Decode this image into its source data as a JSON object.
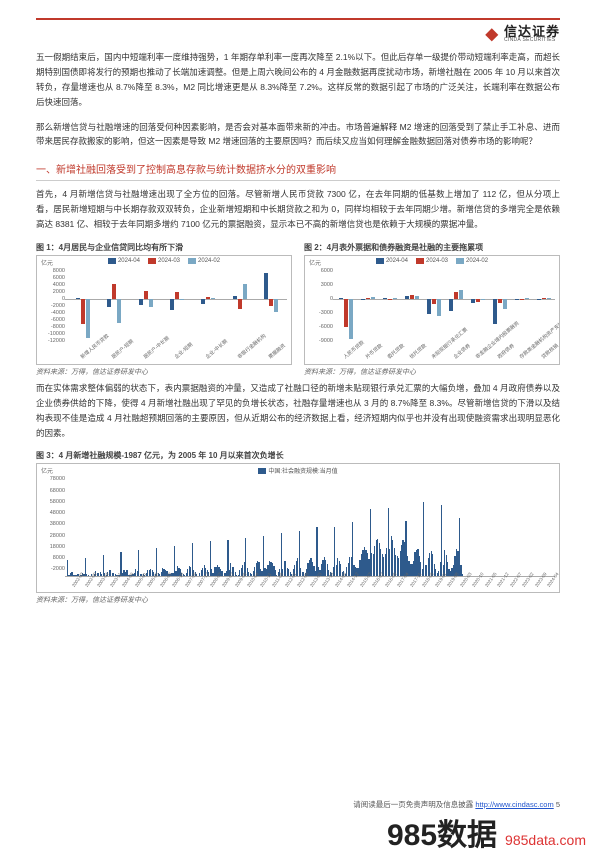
{
  "brand": {
    "cn": "信达证券",
    "en": "CINDA SECURITIES"
  },
  "paragraphs": {
    "p1": "五一假期结束后，国内中短端利率一度维持强势，1 年期存单利率一度再次降至 2.1%以下。但此后存单一级提价带动短端利率走高，而超长期特别国债即将发行的预期也推动了长端加速调整。但是上周六晚间公布的 4 月金融数据再度扰动市场，新增社融在 2005 年 10 月以来首次转负，存量增速也从 8.7%降至 8.3%，M2 同比增速更是从 8.3%降至 7.2%。这样反常的数据引起了市场的广泛关注，长端利率在数据公布后快速回落。",
    "p2": "那么新增信贷与社融增速的回落受何种因素影响，是否会对基本面带来新的冲击。市场普遍解释 M2 增速的回落受到了禁止手工补息、进而带来居民存款搬家的影响，但这一因素是导致 M2 增速回落的主要原因吗？而后续又应当如何理解金融数据回落对债券市场的影响呢？",
    "section": "一、新增社融回落受到了控制高息存款与统计数据挤水分的双重影响",
    "p3": "首先，4 月新增信贷与社融增速出现了全方位的回落。尽管新增人民币贷款 7300 亿，在去年同期的低基数上增加了 112 亿，但从分项上看，居民新增短期与中长期存款双双转负，企业新增短期和中长期贷款之和为 0，同样均相较于去年同期少增。新增信贷的多增完全是依赖高达 8381 亿、相较于去年同期多增约 7100 亿元的票据融资，显示本已不高的新增信贷也是依赖于大规模的票据冲量。",
    "p4": "而在实体需求整体偏弱的状态下，表内票据融资的冲量，又造成了社融口径的新增未贴现银行承兑汇票的大幅负增，叠加 4 月政府债券以及企业债券供给的下降，使得 4 月新增社融出现了罕见的负增长状态，社融存量增速也从 3 月的 8.7%降至 8.3%。尽管新增信贷的下滑以及结构表现不佳是造成 4 月社融超预期回落的主要原因，但从近期公布的经济数据上看，经济短期内似乎也并没有出现使融资需求出现明显恶化的因素。"
  },
  "chart1": {
    "title": "图 1：4月居民与企业信贷同比均有所下滑",
    "ylabel": "亿元",
    "legend": [
      "2024-04",
      "2024-03",
      "2024-02"
    ],
    "legend_colors": [
      "#2e5a8c",
      "#c0392b",
      "#7aa8c4"
    ],
    "yticks": [
      "8000",
      "6000",
      "4000",
      "2000",
      "0",
      "-2000",
      "-4000",
      "-6000",
      "-8000",
      "-10000",
      "-12000"
    ],
    "ymin": -12000,
    "ymax": 8000,
    "categories": [
      "新增人民币贷款",
      "居民户-短期",
      "居民户-中长期",
      "企业-短期",
      "企业-中长期",
      "非银行金融机构",
      "票据融资"
    ],
    "series": {
      "2024-04": [
        112,
        -2400,
        -1800,
        -3200,
        -1500,
        800,
        7100
      ],
      "2024-03": [
        -7000,
        4200,
        2000,
        1800,
        500,
        -2800,
        -2000
      ],
      "2024-02": [
        -11000,
        -6800,
        -2200,
        -500,
        300,
        4000,
        -3800
      ]
    }
  },
  "chart2": {
    "title": "图 2：4月表外票据和债券融资是社融的主要拖累项",
    "ylabel": "亿元",
    "legend": [
      "2024-04",
      "2024-03",
      "2024-02"
    ],
    "legend_colors": [
      "#2e5a8c",
      "#c0392b",
      "#7aa8c4"
    ],
    "yticks": [
      "6000",
      "3000",
      "0",
      "-3000",
      "-6000",
      "-9000"
    ],
    "ymin": -9000,
    "ymax": 6000,
    "categories": [
      "人民币贷款",
      "外币贷款",
      "委托贷款",
      "信托贷款",
      "未贴现银行承兑汇票",
      "企业债券",
      "非金融企业境内股票融资",
      "政府债券",
      "存款类金融机构资产支持证券",
      "贷款核销"
    ],
    "series": {
      "2024-04": [
        100,
        -300,
        50,
        600,
        -3200,
        -2500,
        -800,
        -5200,
        -200,
        -100
      ],
      "2024-03": [
        -6000,
        200,
        -100,
        700,
        -1200,
        1400,
        -600,
        -800,
        -200,
        50
      ],
      "2024-02": [
        -8500,
        400,
        200,
        500,
        -3600,
        1800,
        -200,
        -2200,
        200,
        100
      ]
    }
  },
  "chart3": {
    "title": "图 3：4 月新增社融规模-1987 亿元，为 2005 年 10 月以来首次负增长",
    "ylabel": "亿元",
    "legend": [
      "中国:社会融资规模:当月值"
    ],
    "legend_colors": [
      "#2e5a8c"
    ],
    "yticks": [
      "78000",
      "68000",
      "58000",
      "48000",
      "38000",
      "28000",
      "18000",
      "8000",
      "-2000"
    ],
    "ymin": -2000,
    "ymax": 78000,
    "xticks": [
      "2002-02",
      "2002-09",
      "2003-04",
      "2003-11",
      "2004-06",
      "2005-01",
      "2005-08",
      "2006-03",
      "2006-10",
      "2007-05",
      "2007-12",
      "2008-07",
      "2009-02",
      "2009-09",
      "2010-04",
      "2010-11",
      "2011-06",
      "2012-01",
      "2012-08",
      "2013-03",
      "2013-10",
      "2014-05",
      "2014-12",
      "2015-07",
      "2016-02",
      "2016-09",
      "2017-04",
      "2017-11",
      "2018-06",
      "2019-01",
      "2019-08",
      "2020-03",
      "2020-10",
      "2021-05",
      "2021-12",
      "2022-07",
      "2023-02",
      "2023-09",
      "2024-04"
    ]
  },
  "source": "资料来源：万得，信达证券研发中心",
  "footer": {
    "text": "请阅读最后一页免责声明及信息披露",
    "url": "http://www.cindasc.com",
    "page": "5"
  },
  "watermark": {
    "main": "985数据",
    "domain": "985data.com"
  }
}
